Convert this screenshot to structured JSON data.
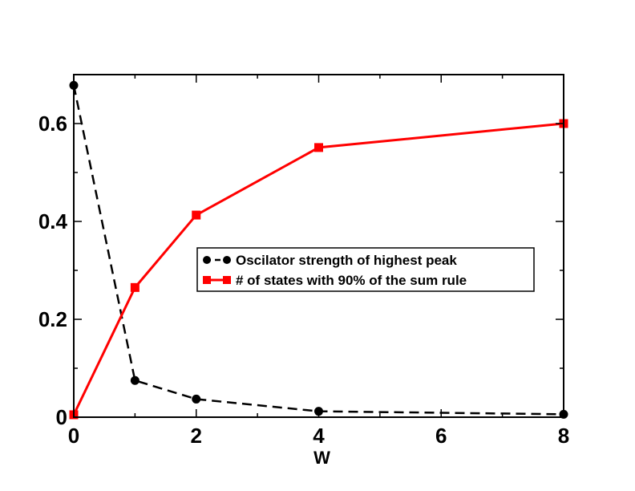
{
  "chart_data": {
    "type": "line",
    "title": "",
    "xlabel": "W",
    "ylabel": "",
    "xlim": [
      0,
      8
    ],
    "ylim": [
      0,
      0.7
    ],
    "xticks": [
      0,
      2,
      4,
      6,
      8
    ],
    "xtick_labels": [
      "0",
      "2",
      "4",
      "6",
      "8"
    ],
    "yticks": [
      0,
      0.2,
      0.4,
      0.6
    ],
    "ytick_labels": [
      "0",
      "0.2",
      "0.4",
      "0.6"
    ],
    "grid": false,
    "legend_position": "center-right",
    "series": [
      {
        "name": "Oscilator strength of highest peak",
        "color": "#000000",
        "line_style": "dashed",
        "marker": "circle",
        "x": [
          0,
          1,
          2,
          4,
          8
        ],
        "y": [
          0.678,
          0.075,
          0.037,
          0.012,
          0.006
        ]
      },
      {
        "name": "# of states with 90% of the sum rule",
        "color": "#ff0000",
        "line_style": "solid",
        "marker": "square",
        "x": [
          0,
          1,
          2,
          4,
          8
        ],
        "y": [
          0.005,
          0.265,
          0.413,
          0.551,
          0.6
        ]
      }
    ]
  }
}
